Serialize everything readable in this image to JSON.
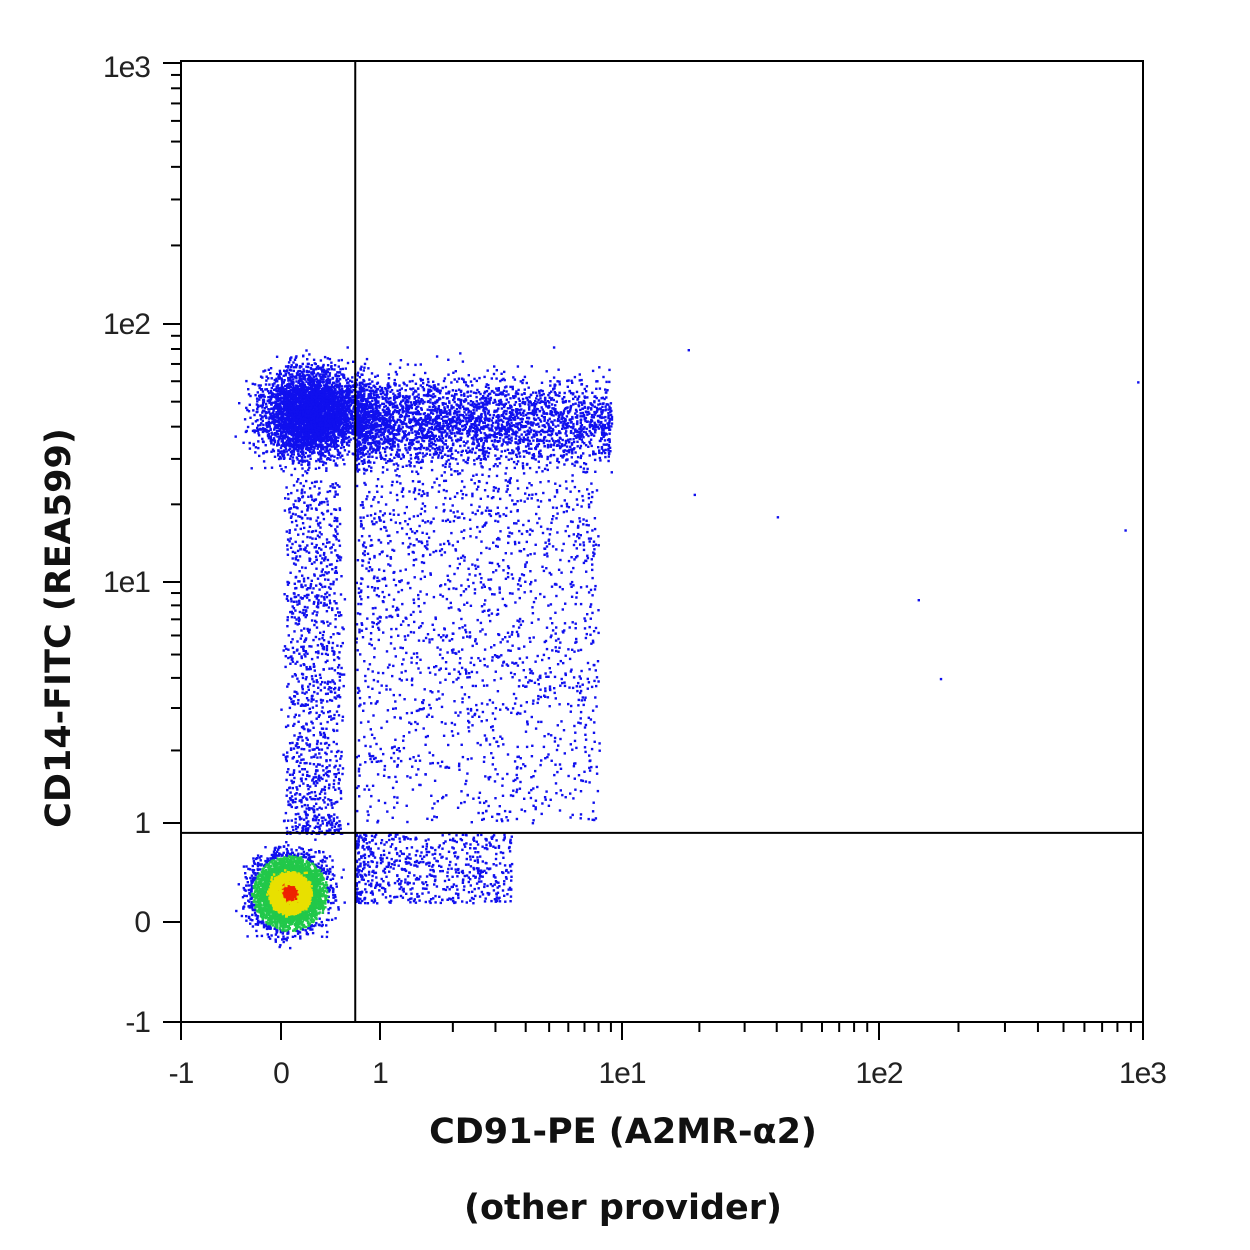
{
  "chart_data": {
    "type": "scatter",
    "subtype": "flow-cytometry-density-dot-plot",
    "xlabel": "CD91-PE (A2MR-α2)",
    "xlabel_line2": "(other provider)",
    "ylabel": "CD14-FITC (REA599)",
    "x_scale": "biexponential",
    "y_scale": "biexponential",
    "xlim": [
      -1,
      1000
    ],
    "ylim": [
      -1,
      1000
    ],
    "x_ticks": [
      {
        "value": -1,
        "label": "-1"
      },
      {
        "value": 0,
        "label": "0"
      },
      {
        "value": 1,
        "label": "1"
      },
      {
        "value": 10,
        "label": "1e1"
      },
      {
        "value": 100,
        "label": "1e2"
      },
      {
        "value": 1000,
        "label": "1e3"
      }
    ],
    "y_ticks": [
      {
        "value": -1,
        "label": "-1"
      },
      {
        "value": 0,
        "label": "0"
      },
      {
        "value": 1,
        "label": "1"
      },
      {
        "value": 10,
        "label": "1e1"
      },
      {
        "value": 100,
        "label": "1e2"
      },
      {
        "value": 1000,
        "label": "1e3"
      }
    ],
    "quadrant_gates": {
      "x": 0.75,
      "y": 0.9
    },
    "grid": false,
    "colors": {
      "dots": "#1010ee",
      "density_low": "#1010ee",
      "density_mid": "#22c84a",
      "density_high": "#e8e000",
      "density_peak": "#ee2200",
      "axes": "#000000"
    },
    "populations": [
      {
        "name": "CD14-CD91- cluster",
        "center": [
          0.08,
          0.3
        ],
        "spread": [
          0.12,
          0.2
        ],
        "density": "high"
      },
      {
        "name": "CD14+ cluster",
        "center": [
          0.3,
          45
        ],
        "spread": [
          0.25,
          0.12
        ],
        "density": "medium"
      },
      {
        "name": "CD14+CD91+ streak",
        "x_range": [
          0.75,
          9
        ],
        "y_center": 42,
        "density": "medium"
      },
      {
        "name": "CD14-CD91+ streak",
        "x_range": [
          0.75,
          3.5
        ],
        "y_range": [
          0.2,
          0.9
        ],
        "density": "low"
      },
      {
        "name": "transition column",
        "x_range": [
          0.05,
          0.6
        ],
        "y_range": [
          0.9,
          25
        ],
        "density": "low"
      },
      {
        "name": "sparse diagonal",
        "x_range": [
          0.75,
          8
        ],
        "y_range": [
          1,
          25
        ],
        "density": "low"
      }
    ],
    "outliers": [
      [
        18,
        80
      ],
      [
        19,
        22
      ],
      [
        40,
        18
      ],
      [
        140,
        8.5
      ],
      [
        170,
        4
      ],
      [
        850,
        16
      ],
      [
        950,
        60
      ]
    ]
  }
}
